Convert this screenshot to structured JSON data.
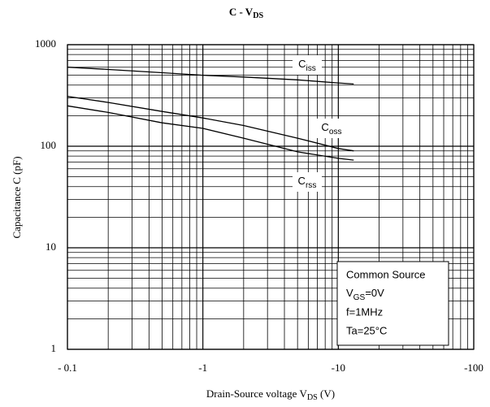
{
  "chart_data": {
    "type": "line",
    "title": "C - VDS",
    "x_label": "Drain-Source voltage  VDS (V)",
    "y_label": "Capacitance  C (pF)",
    "x": [
      -0.1,
      -0.2,
      -0.5,
      -1,
      -2,
      -5,
      -10,
      -13
    ],
    "series": [
      {
        "name": "Ciss",
        "color": "#000000",
        "values": [
          600,
          570,
          530,
          500,
          480,
          450,
          420,
          410
        ]
      },
      {
        "name": "Coss",
        "color": "#000000",
        "values": [
          310,
          270,
          220,
          190,
          160,
          120,
          95,
          90
        ]
      },
      {
        "name": "Crss",
        "color": "#000000",
        "values": [
          250,
          215,
          170,
          150,
          120,
          88,
          76,
          73
        ]
      }
    ],
    "xscale": "log",
    "yscale": "log",
    "xlim": [
      -0.1,
      -100
    ],
    "ylim": [
      1,
      1000
    ],
    "xticks": [
      {
        "value": -0.1,
        "label": "- 0.1"
      },
      {
        "value": -1,
        "label": "-1"
      },
      {
        "value": -10,
        "label": "-10"
      },
      {
        "value": -100,
        "label": "-100"
      }
    ],
    "yticks": [
      1,
      10,
      100,
      1000
    ],
    "grid": true,
    "annotations": [
      "Common Source",
      "VGS=0V",
      "f=1MHz",
      "Ta=25°C"
    ]
  }
}
